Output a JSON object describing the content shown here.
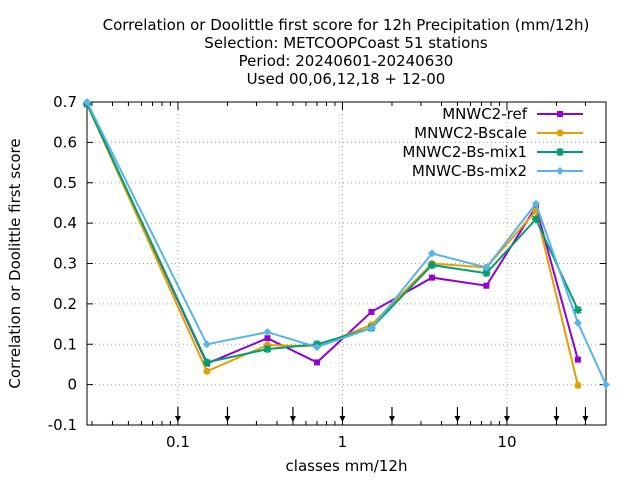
{
  "chart_data": {
    "type": "line",
    "title_lines": [
      "Correlation or Doolittle first score  for 12h Precipitation (mm/12h)",
      "Selection: METCOOPCoast     51 stations",
      "Period: 20240601-20240630",
      "Used 00,06,12,18 + 12-00"
    ],
    "xlabel": "classes mm/12h",
    "ylabel": "Correlation or Doolittle first score",
    "xscale": "log",
    "xlim": [
      0.028,
      40
    ],
    "ylim": [
      -0.1,
      0.7
    ],
    "xticks": [
      0.1,
      1,
      10
    ],
    "xtick_labels": [
      "0.1",
      "1",
      "10"
    ],
    "yticks": [
      -0.1,
      0,
      0.1,
      0.2,
      0.3,
      0.4,
      0.5,
      0.6,
      0.7
    ],
    "ytick_labels": [
      "-0.1",
      "0",
      "0.1",
      "0.2",
      "0.3",
      "0.4",
      "0.5",
      "0.6",
      "0.7"
    ],
    "grid": true,
    "legend_position": "top-right",
    "class_markers": [
      0.1,
      0.2,
      0.5,
      1,
      2,
      5,
      10,
      20,
      30
    ],
    "series": [
      {
        "name": "MNWC2-ref",
        "color": "#9400d3",
        "marker": "square",
        "x": [
          0.028,
          0.15,
          0.35,
          0.7,
          1.5,
          3.5,
          7.5,
          15,
          27
        ],
        "y": [
          0.695,
          0.052,
          0.115,
          0.055,
          0.18,
          0.265,
          0.245,
          0.44,
          0.062
        ]
      },
      {
        "name": "MNWC2-Bscale",
        "color": "#e69f00",
        "marker": "circle",
        "x": [
          0.028,
          0.15,
          0.35,
          0.7,
          1.5,
          3.5,
          7.5,
          15,
          27
        ],
        "y": [
          0.695,
          0.033,
          0.098,
          0.095,
          0.148,
          0.3,
          0.29,
          0.43,
          -0.002
        ]
      },
      {
        "name": "MNWC2-Bs-mix1",
        "color": "#009e73",
        "marker": "star",
        "x": [
          0.028,
          0.15,
          0.35,
          0.7,
          1.5,
          3.5,
          7.5,
          15,
          27
        ],
        "y": [
          0.695,
          0.055,
          0.088,
          0.1,
          0.14,
          0.296,
          0.276,
          0.41,
          0.185
        ]
      },
      {
        "name": "MNWC-Bs-mix2",
        "color": "#56b4e9",
        "marker": "diamond",
        "x": [
          0.028,
          0.15,
          0.35,
          0.7,
          1.5,
          3.5,
          7.5,
          15,
          27,
          40
        ],
        "y": [
          0.7,
          0.1,
          0.13,
          0.093,
          0.14,
          0.325,
          0.29,
          0.448,
          0.153,
          0.0
        ]
      }
    ]
  }
}
